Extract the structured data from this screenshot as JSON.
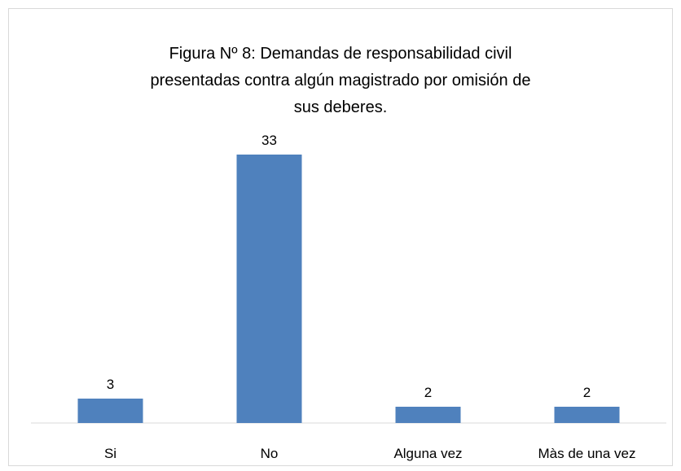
{
  "chart_data": {
    "type": "bar",
    "title": "Figura Nº 8: Demandas de responsabilidad civil presentadas contra algún magistrado por omisión de sus deberes.",
    "categories": [
      "Si",
      "No",
      "Alguna vez",
      "Màs de una vez"
    ],
    "values": [
      3,
      33,
      2,
      2
    ],
    "color": "#4f81bd"
  }
}
